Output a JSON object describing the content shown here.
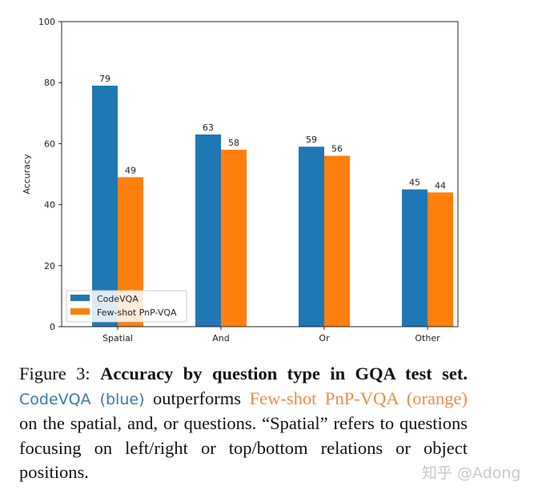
{
  "chart_data": {
    "type": "bar",
    "categories": [
      "Spatial",
      "And",
      "Or",
      "Other"
    ],
    "series": [
      {
        "name": "CodeVQA",
        "values": [
          79,
          63,
          59,
          45
        ],
        "color": "#1f77b4"
      },
      {
        "name": "Few-shot PnP-VQA",
        "values": [
          49,
          58,
          56,
          44
        ],
        "color": "#ff7f0e"
      }
    ],
    "xlabel": "",
    "ylabel": "Accuracy",
    "ylim": [
      0,
      100
    ],
    "yticks": [
      0,
      20,
      40,
      60,
      80,
      100
    ],
    "grid": false,
    "legend": "lower-left",
    "data_labels": true
  },
  "caption": {
    "prefix": "Figure 3: ",
    "bold": "Accuracy by question type in GQA test set.",
    "blue_text": "CodeVQA (blue)",
    "mid": " outperforms ",
    "orange_text": "Few-shot PnP-VQA (orange)",
    "rest": " on the spatial, and, or questions.  “Spatial” refers to questions focusing on left/right or top/bottom relations or object positions."
  },
  "watermark": "知乎 @Adong"
}
